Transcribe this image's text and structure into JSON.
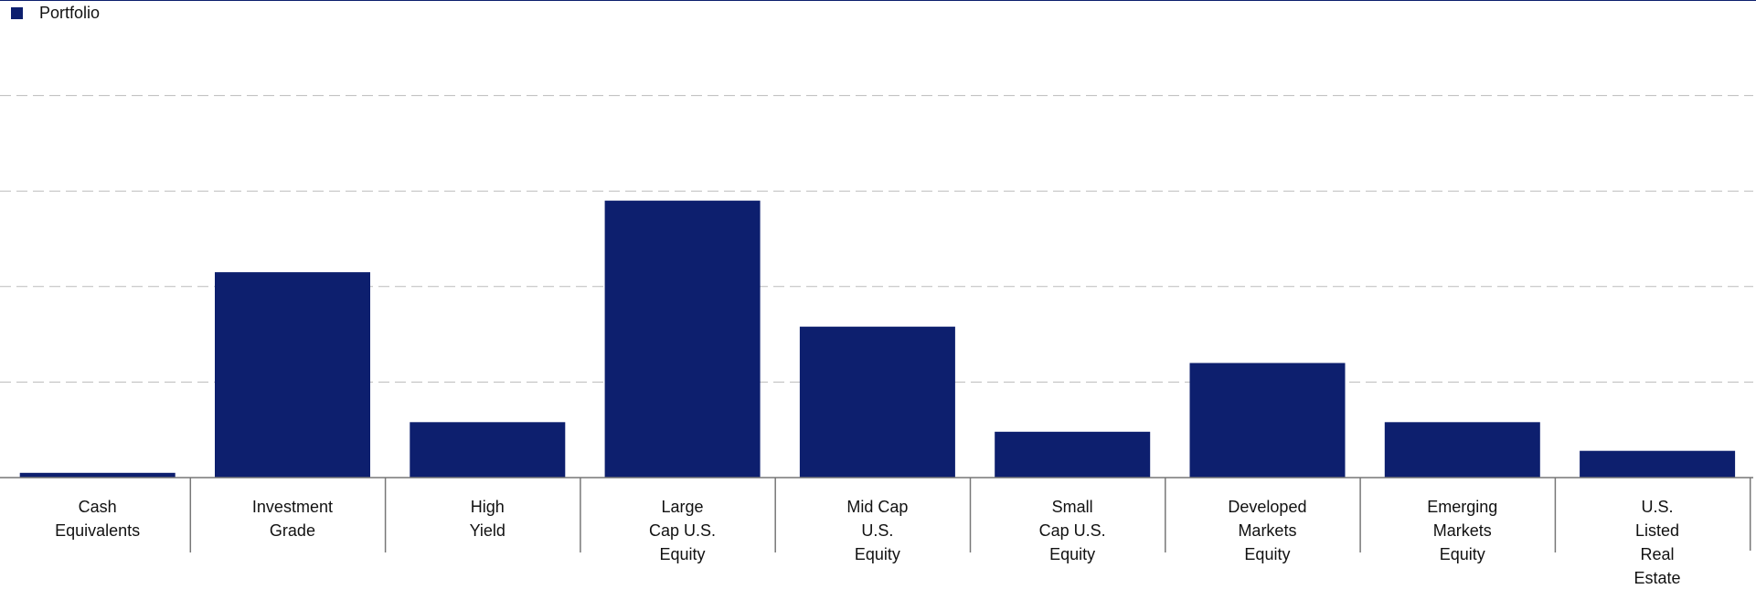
{
  "chart_data": {
    "type": "bar",
    "categories": [
      [
        "Cash",
        "Equivalents"
      ],
      [
        "Investment",
        "Grade"
      ],
      [
        "High",
        "Yield"
      ],
      [
        "Large",
        "Cap U.S.",
        "Equity"
      ],
      [
        "Mid Cap",
        "U.S.",
        "Equity"
      ],
      [
        "Small",
        "Cap U.S.",
        "Equity"
      ],
      [
        "Developed",
        "Markets",
        "Equity"
      ],
      [
        "Emerging",
        "Markets",
        "Equity"
      ],
      [
        "U.S.",
        "Listed",
        "Real",
        "Estate"
      ]
    ],
    "series": [
      {
        "name": "Portfolio",
        "color": "#0d1f6e",
        "values": [
          0.5,
          21.5,
          5.8,
          29.0,
          15.8,
          4.8,
          12.0,
          5.8,
          2.8
        ]
      }
    ],
    "ylim": [
      0,
      50
    ],
    "grid": true,
    "legend": "top-left"
  }
}
